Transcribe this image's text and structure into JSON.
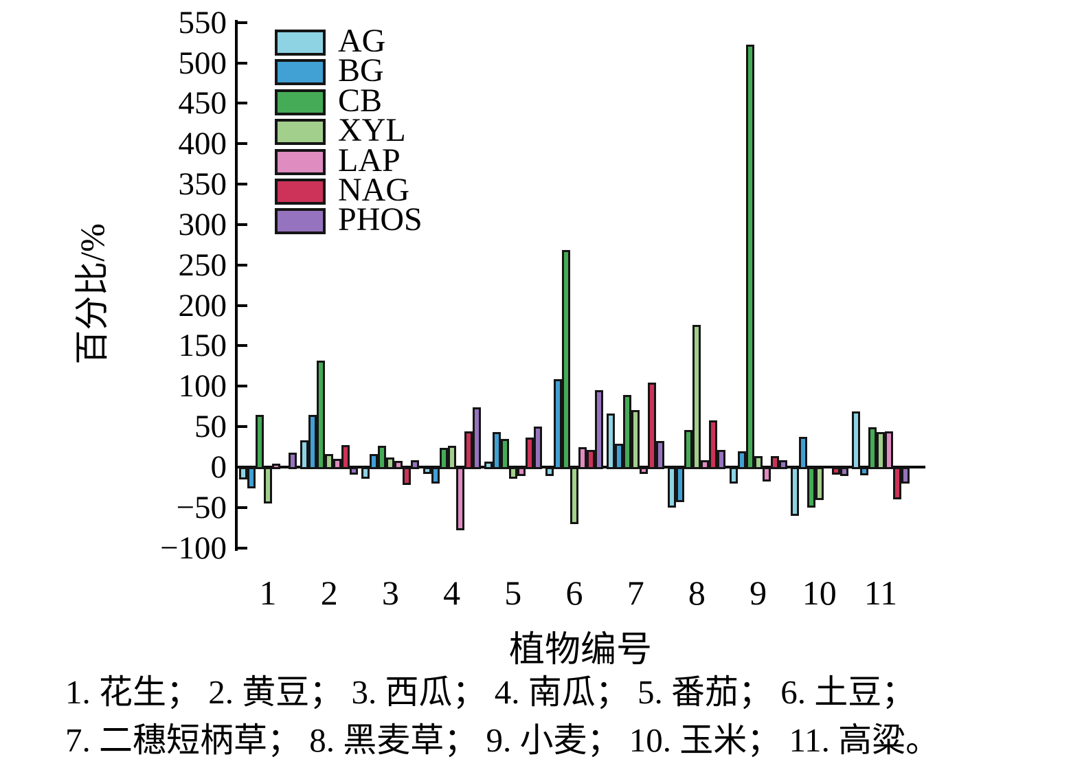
{
  "chart_data": {
    "type": "bar",
    "title": "",
    "xlabel": "植物编号",
    "ylabel": "百分比/%",
    "ylim": [
      -100,
      550
    ],
    "ytick_interval": 50,
    "yticks": [
      550,
      500,
      450,
      400,
      350,
      300,
      250,
      200,
      150,
      100,
      50,
      0,
      -50,
      -100
    ],
    "categories": [
      "1",
      "2",
      "3",
      "4",
      "5",
      "6",
      "7",
      "8",
      "9",
      "10",
      "11"
    ],
    "series": [
      {
        "name": "AG",
        "color": "#8ed3e4",
        "values": [
          -10,
          31,
          -9,
          -3,
          4,
          -6,
          64,
          -45,
          -15,
          -55,
          66
        ]
      },
      {
        "name": "BG",
        "color": "#41a0d4",
        "values": [
          -21,
          62,
          14,
          -15,
          41,
          106,
          26,
          -38,
          17,
          35,
          -5
        ]
      },
      {
        "name": "CB",
        "color": "#46ab57",
        "values": [
          62,
          129,
          24,
          21,
          32,
          266,
          87,
          43,
          520,
          -45,
          47
        ]
      },
      {
        "name": "XYL",
        "color": "#a3cf8d",
        "values": [
          -40,
          14,
          9,
          24,
          -9,
          -65,
          68,
          173,
          11,
          -36,
          41
        ]
      },
      {
        "name": "LAP",
        "color": "#df8cc0",
        "values": [
          2,
          8,
          5,
          -73,
          -6,
          22,
          -3,
          6,
          -13,
          0,
          42
        ]
      },
      {
        "name": "NAG",
        "color": "#cd3358",
        "values": [
          0,
          25,
          -17,
          42,
          34,
          19,
          102,
          55,
          11,
          -4,
          -35
        ]
      },
      {
        "name": "PHOS",
        "color": "#9673be",
        "values": [
          15,
          -4,
          6,
          71,
          48,
          93,
          30,
          19,
          6,
          -6,
          -15
        ]
      }
    ],
    "legend_position": "top-left",
    "grid": false
  },
  "caption": {
    "line1": "1. 花生； 2. 黄豆； 3. 西瓜； 4. 南瓜； 5. 番茄； 6. 土豆；",
    "line2": "7. 二穗短柄草； 8. 黑麦草； 9. 小麦； 10. 玉米； 11. 高粱。"
  }
}
